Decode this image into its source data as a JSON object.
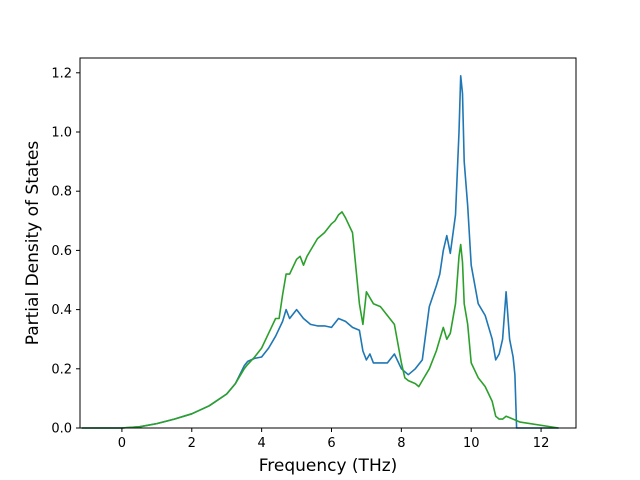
{
  "chart_data": {
    "type": "line",
    "title": "",
    "xlabel": "Frequency (THz)",
    "ylabel": "Partial Density of States",
    "xlim": [
      -1.2,
      13.0
    ],
    "ylim": [
      0.0,
      1.25
    ],
    "xticks": [
      0,
      2,
      4,
      6,
      8,
      10,
      12
    ],
    "yticks": [
      0.0,
      0.2,
      0.4,
      0.6,
      0.8,
      1.0,
      1.2
    ],
    "xtick_labels": [
      "0",
      "2",
      "4",
      "6",
      "8",
      "10",
      "12"
    ],
    "ytick_labels": [
      "0.0",
      "0.2",
      "0.4",
      "0.6",
      "0.8",
      "1.0",
      "1.2"
    ],
    "grid": false,
    "legend": "none",
    "series": [
      {
        "color": "#1f77b4",
        "x": [
          -1.15,
          -0.5,
          0,
          0.5,
          1,
          1.5,
          2,
          2.5,
          3,
          3.25,
          3.5,
          3.6,
          3.8,
          4,
          4.2,
          4.4,
          4.6,
          4.7,
          4.8,
          5,
          5.2,
          5.4,
          5.6,
          5.8,
          6,
          6.2,
          6.4,
          6.6,
          6.8,
          6.9,
          7,
          7.1,
          7.2,
          7.4,
          7.6,
          7.8,
          8,
          8.2,
          8.4,
          8.6,
          8.8,
          9,
          9.1,
          9.2,
          9.3,
          9.4,
          9.55,
          9.65,
          9.7,
          9.75,
          9.8,
          9.9,
          10,
          10.2,
          10.4,
          10.6,
          10.7,
          10.8,
          10.9,
          11,
          11.1,
          11.2,
          11.25,
          11.3,
          11.5,
          12.5
        ],
        "y": [
          0,
          0,
          0,
          0.004,
          0.015,
          0.03,
          0.048,
          0.075,
          0.115,
          0.15,
          0.21,
          0.225,
          0.235,
          0.24,
          0.27,
          0.31,
          0.36,
          0.4,
          0.37,
          0.4,
          0.37,
          0.35,
          0.345,
          0.345,
          0.34,
          0.37,
          0.36,
          0.34,
          0.33,
          0.26,
          0.23,
          0.25,
          0.22,
          0.22,
          0.22,
          0.25,
          0.2,
          0.18,
          0.2,
          0.23,
          0.41,
          0.48,
          0.52,
          0.6,
          0.65,
          0.59,
          0.72,
          1.0,
          1.19,
          1.13,
          0.9,
          0.75,
          0.55,
          0.42,
          0.38,
          0.3,
          0.23,
          0.25,
          0.3,
          0.46,
          0.3,
          0.24,
          0.18,
          0,
          0,
          0
        ]
      },
      {
        "color": "#2ca02c",
        "x": [
          -1.15,
          -0.5,
          0,
          0.5,
          1,
          1.5,
          2,
          2.5,
          3,
          3.25,
          3.5,
          3.6,
          3.8,
          4,
          4.2,
          4.4,
          4.5,
          4.6,
          4.7,
          4.8,
          5,
          5.1,
          5.2,
          5.3,
          5.4,
          5.6,
          5.8,
          6,
          6.1,
          6.2,
          6.3,
          6.4,
          6.6,
          6.8,
          6.9,
          7,
          7.2,
          7.4,
          7.6,
          7.8,
          8,
          8.1,
          8.2,
          8.4,
          8.5,
          8.6,
          8.8,
          9,
          9.2,
          9.3,
          9.4,
          9.55,
          9.65,
          9.7,
          9.75,
          9.8,
          9.9,
          10,
          10.2,
          10.4,
          10.6,
          10.7,
          10.8,
          10.9,
          11,
          11.2,
          11.4,
          12.5
        ],
        "y": [
          0,
          0,
          0,
          0.004,
          0.015,
          0.03,
          0.048,
          0.075,
          0.115,
          0.15,
          0.2,
          0.215,
          0.24,
          0.27,
          0.32,
          0.37,
          0.37,
          0.45,
          0.52,
          0.52,
          0.57,
          0.58,
          0.55,
          0.58,
          0.6,
          0.64,
          0.66,
          0.69,
          0.7,
          0.72,
          0.73,
          0.71,
          0.66,
          0.42,
          0.35,
          0.46,
          0.42,
          0.41,
          0.38,
          0.35,
          0.22,
          0.17,
          0.16,
          0.15,
          0.14,
          0.16,
          0.2,
          0.26,
          0.34,
          0.3,
          0.32,
          0.42,
          0.58,
          0.62,
          0.56,
          0.42,
          0.35,
          0.22,
          0.17,
          0.14,
          0.09,
          0.04,
          0.03,
          0.03,
          0.04,
          0.03,
          0.02,
          0
        ]
      }
    ]
  }
}
